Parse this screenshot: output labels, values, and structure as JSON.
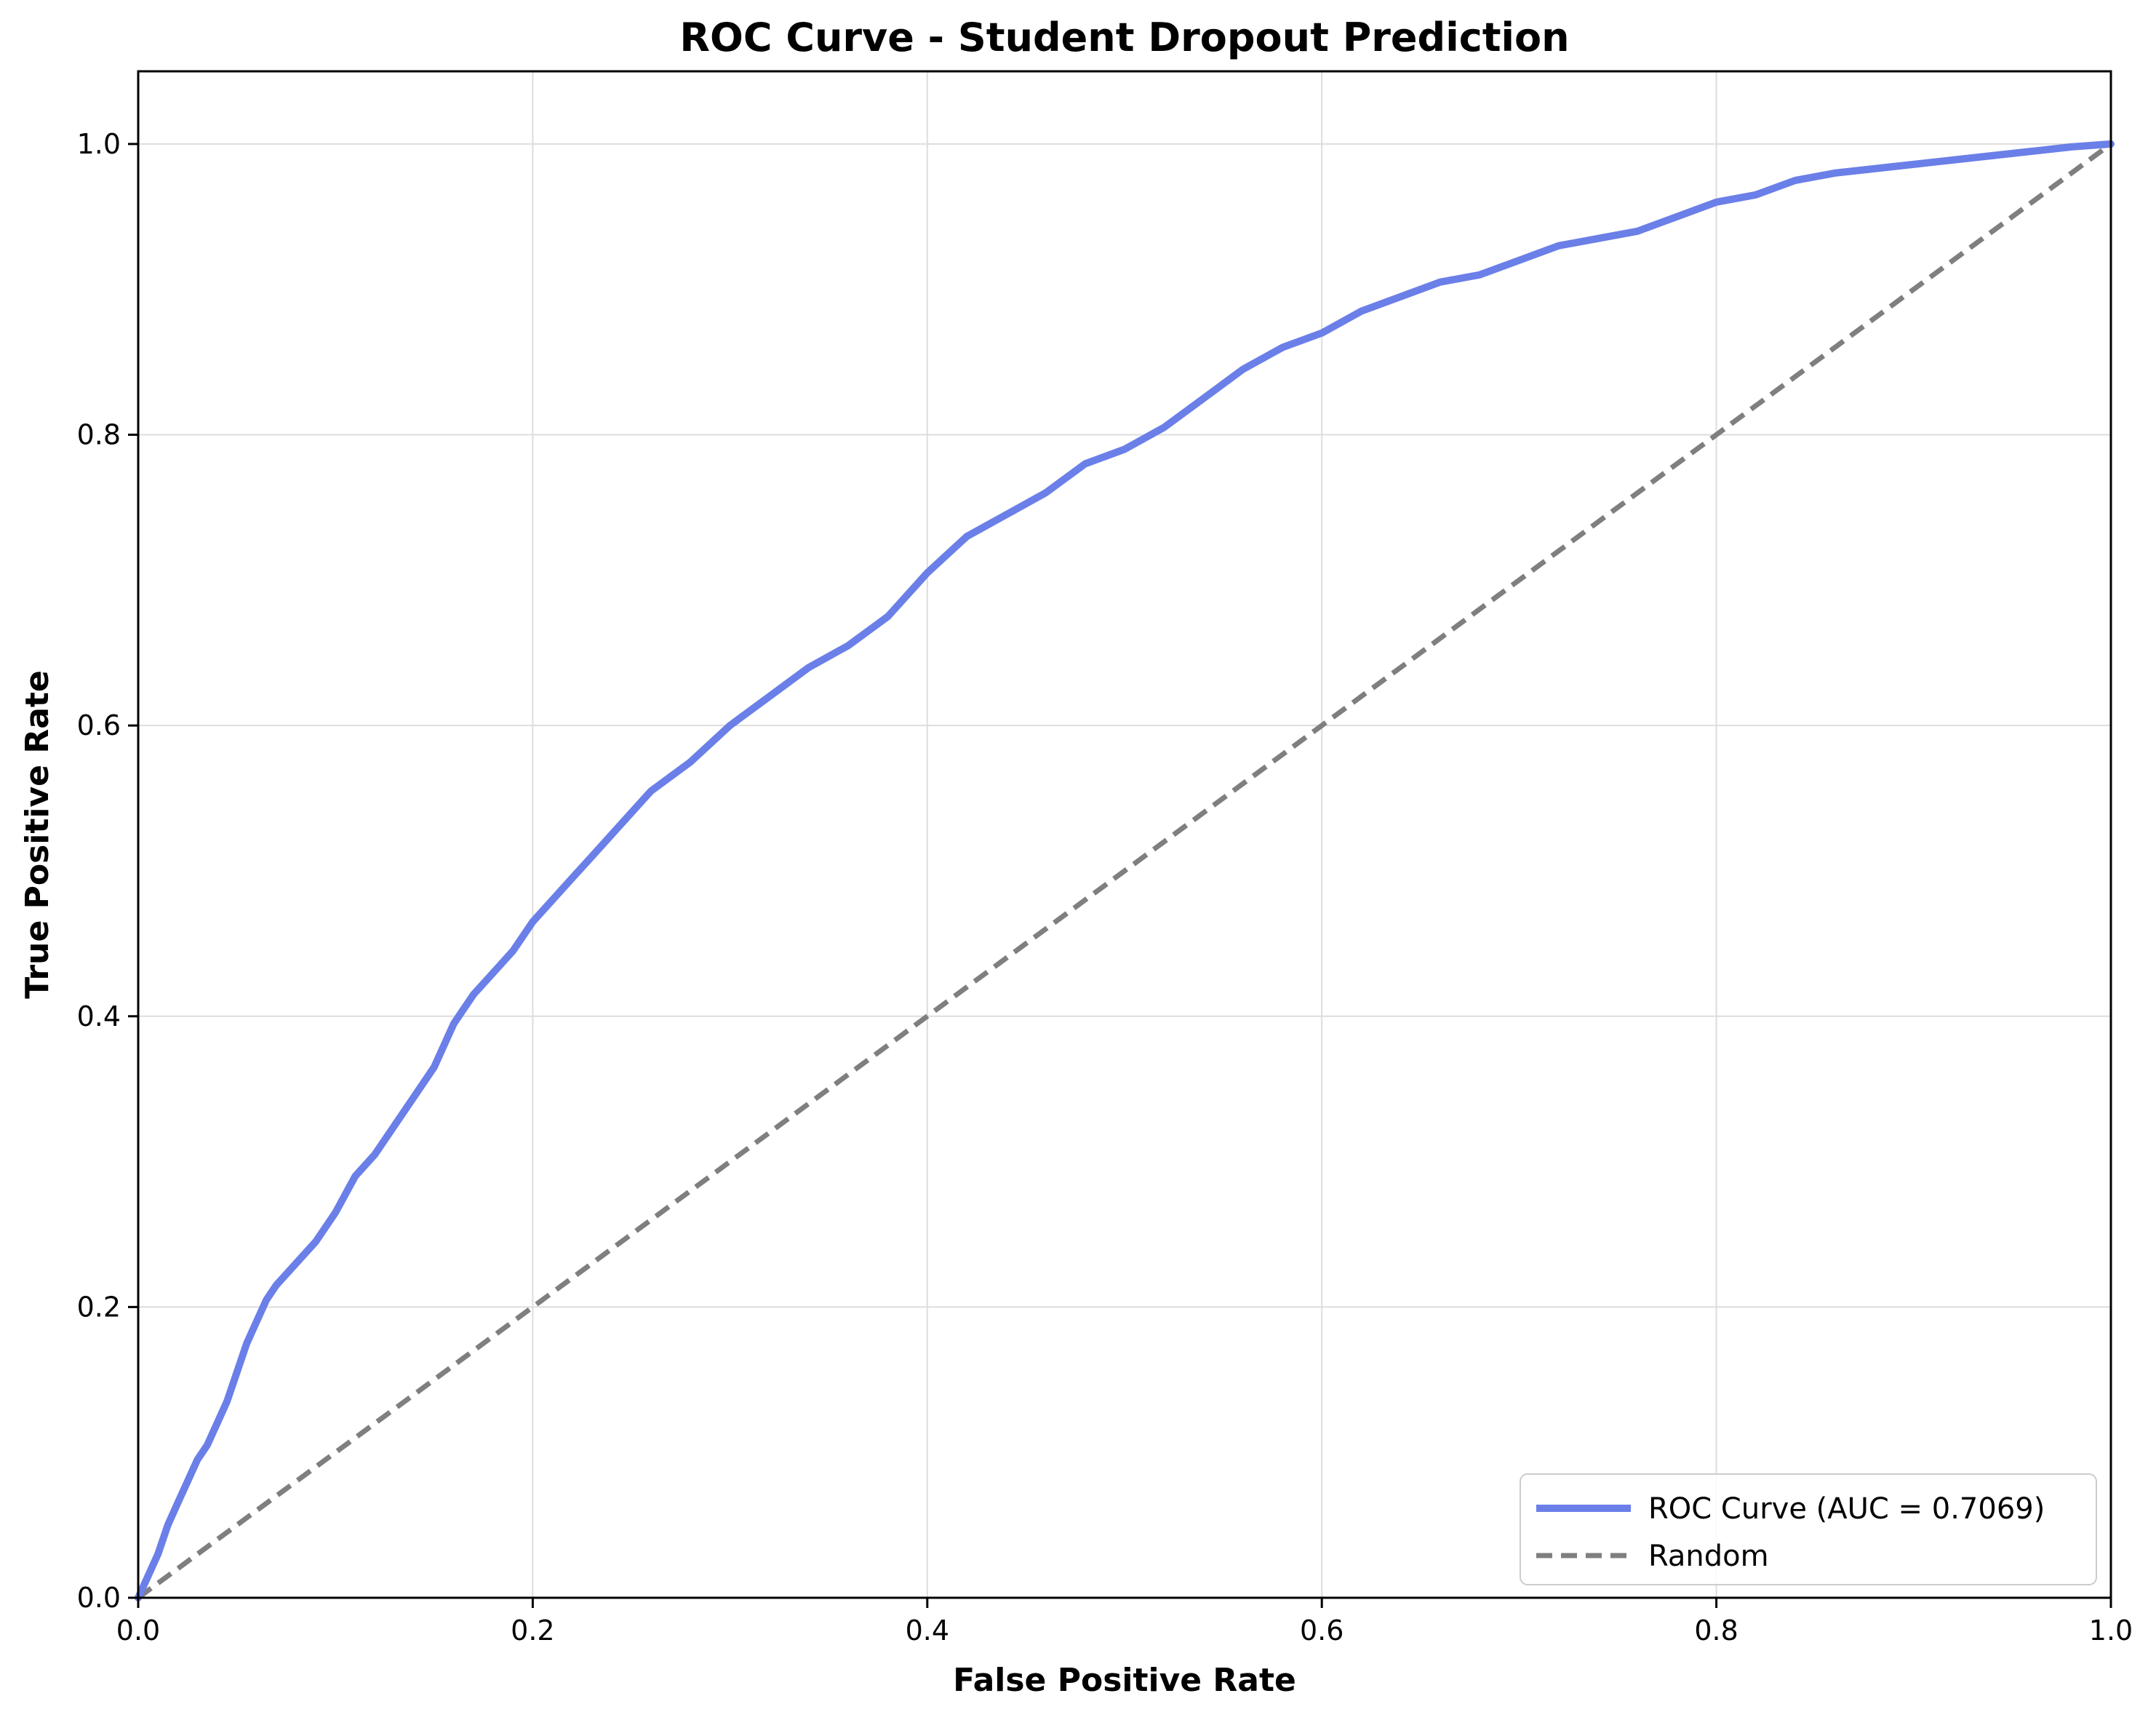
{
  "colors": {
    "roc": "#6b7fe8",
    "random": "#7f7f7f",
    "grid": "#dddddd",
    "axis": "#000000"
  },
  "chart_data": {
    "type": "line",
    "title": "ROC Curve - Student Dropout Prediction",
    "xlabel": "False Positive Rate",
    "ylabel": "True Positive Rate",
    "xlim": [
      0.0,
      1.0
    ],
    "ylim": [
      0.0,
      1.05
    ],
    "x_ticks": [
      0.0,
      0.2,
      0.4,
      0.6,
      0.8,
      1.0
    ],
    "x_tick_labels": [
      "0.0",
      "0.2",
      "0.4",
      "0.6",
      "0.8",
      "1.0"
    ],
    "y_ticks": [
      0.0,
      0.2,
      0.4,
      0.6,
      0.8,
      1.0
    ],
    "y_tick_labels": [
      "0.0",
      "0.2",
      "0.4",
      "0.6",
      "0.8",
      "1.0"
    ],
    "grid": true,
    "legend_position": "bottom-right",
    "series": [
      {
        "name": "ROC Curve (AUC = 0.7069)",
        "style": "solid",
        "x": [
          0.0,
          0.005,
          0.01,
          0.015,
          0.02,
          0.025,
          0.03,
          0.035,
          0.04,
          0.045,
          0.05,
          0.055,
          0.06,
          0.065,
          0.07,
          0.08,
          0.09,
          0.1,
          0.11,
          0.12,
          0.13,
          0.14,
          0.15,
          0.16,
          0.17,
          0.18,
          0.19,
          0.2,
          0.21,
          0.22,
          0.23,
          0.24,
          0.25,
          0.26,
          0.28,
          0.3,
          0.32,
          0.34,
          0.36,
          0.38,
          0.39,
          0.4,
          0.42,
          0.44,
          0.46,
          0.48,
          0.5,
          0.52,
          0.54,
          0.56,
          0.58,
          0.6,
          0.62,
          0.64,
          0.66,
          0.68,
          0.7,
          0.72,
          0.74,
          0.76,
          0.78,
          0.8,
          0.82,
          0.84,
          0.86,
          0.88,
          0.9,
          0.92,
          0.94,
          0.96,
          0.98,
          1.0
        ],
        "y": [
          0.0,
          0.015,
          0.03,
          0.05,
          0.065,
          0.08,
          0.095,
          0.105,
          0.12,
          0.135,
          0.155,
          0.175,
          0.19,
          0.205,
          0.215,
          0.23,
          0.245,
          0.265,
          0.29,
          0.305,
          0.325,
          0.345,
          0.365,
          0.395,
          0.415,
          0.43,
          0.445,
          0.465,
          0.48,
          0.495,
          0.51,
          0.525,
          0.54,
          0.555,
          0.575,
          0.6,
          0.62,
          0.64,
          0.655,
          0.675,
          0.69,
          0.705,
          0.73,
          0.745,
          0.76,
          0.78,
          0.79,
          0.805,
          0.825,
          0.845,
          0.86,
          0.87,
          0.885,
          0.895,
          0.905,
          0.91,
          0.92,
          0.93,
          0.935,
          0.94,
          0.95,
          0.96,
          0.965,
          0.975,
          0.98,
          0.983,
          0.986,
          0.989,
          0.992,
          0.995,
          0.998,
          1.0
        ]
      },
      {
        "name": "Random",
        "style": "dashed",
        "x": [
          0.0,
          1.0
        ],
        "y": [
          0.0,
          1.0
        ]
      }
    ]
  }
}
